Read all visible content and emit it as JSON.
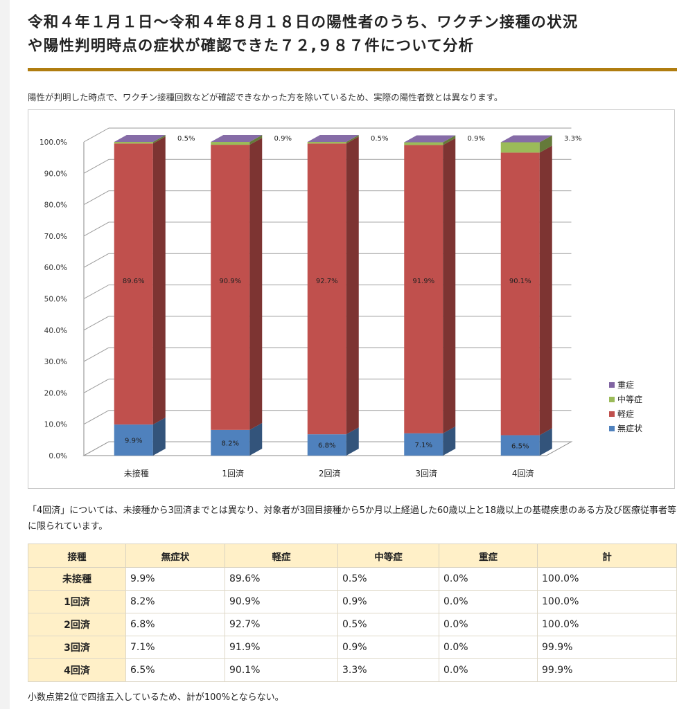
{
  "heading": {
    "line1": "令和４年１月１日～令和４年８月１８日の陽性者のうち、ワクチン接種の状況",
    "line2": "や陽性判明時点の症状が確認できた７２,９８７件について分析"
  },
  "lead_text": "陽性が判明した時点で、ワクチン接種回数などが確認できなかった方を除いているため、実際の陽性者数とは異なります。",
  "colors": {
    "asymptomatic": "#4f81bd",
    "mild": "#c0504d",
    "moderate": "#9bbb59",
    "severe": "#8064a2",
    "accent_rule": "#b07d10",
    "table_header_bg": "#fff0c8"
  },
  "chart_data": {
    "type": "bar",
    "stacked": true,
    "three_d": true,
    "categories": [
      "未接種",
      "1回済",
      "2回済",
      "3回済",
      "4回済"
    ],
    "series": [
      {
        "name": "無症状",
        "values": [
          9.9,
          8.2,
          6.8,
          7.1,
          6.5
        ]
      },
      {
        "name": "軽症",
        "values": [
          89.6,
          90.9,
          92.7,
          91.9,
          90.1
        ]
      },
      {
        "name": "中等症",
        "values": [
          0.5,
          0.9,
          0.5,
          0.9,
          3.3
        ]
      },
      {
        "name": "重症",
        "values": [
          0.0,
          0.0,
          0.0,
          0.0,
          0.0
        ]
      }
    ],
    "data_labels": {
      "無症状": [
        "9.9%",
        "8.2%",
        "6.8%",
        "7.1%",
        "6.5%"
      ],
      "軽症": [
        "89.6%",
        "90.9%",
        "92.7%",
        "91.9%",
        "90.1%"
      ],
      "中等症": [
        "0.5%",
        "0.9%",
        "0.5%",
        "0.9%",
        "3.3%"
      ]
    },
    "y_ticks": [
      "0.0%",
      "10.0%",
      "20.0%",
      "30.0%",
      "40.0%",
      "50.0%",
      "60.0%",
      "70.0%",
      "80.0%",
      "90.0%",
      "100.0%"
    ],
    "ylim": [
      0,
      100
    ],
    "grid": true,
    "legend_position": "right",
    "legend": [
      "重症",
      "中等症",
      "軽症",
      "無症状"
    ]
  },
  "note1": "「4回済」については、未接種から3回済までとは異なり、対象者が3回目接種から5か月以上経過した60歳以上と18歳以上の基礎疾患のある方及び医療従事者等に限られています。",
  "table": {
    "headers": [
      "接種",
      "無症状",
      "軽症",
      "中等症",
      "重症",
      "計"
    ],
    "rows": [
      [
        "未接種",
        "9.9%",
        "89.6%",
        "0.5%",
        "0.0%",
        "100.0%"
      ],
      [
        "1回済",
        "8.2%",
        "90.9%",
        "0.9%",
        "0.0%",
        "100.0%"
      ],
      [
        "2回済",
        "6.8%",
        "92.7%",
        "0.5%",
        "0.0%",
        "100.0%"
      ],
      [
        "3回済",
        "7.1%",
        "91.9%",
        "0.9%",
        "0.0%",
        "99.9%"
      ],
      [
        "4回済",
        "6.5%",
        "90.1%",
        "3.3%",
        "0.0%",
        "99.9%"
      ]
    ]
  },
  "footnote": "小数点第2位で四捨五入しているため、計が100%とならない。"
}
